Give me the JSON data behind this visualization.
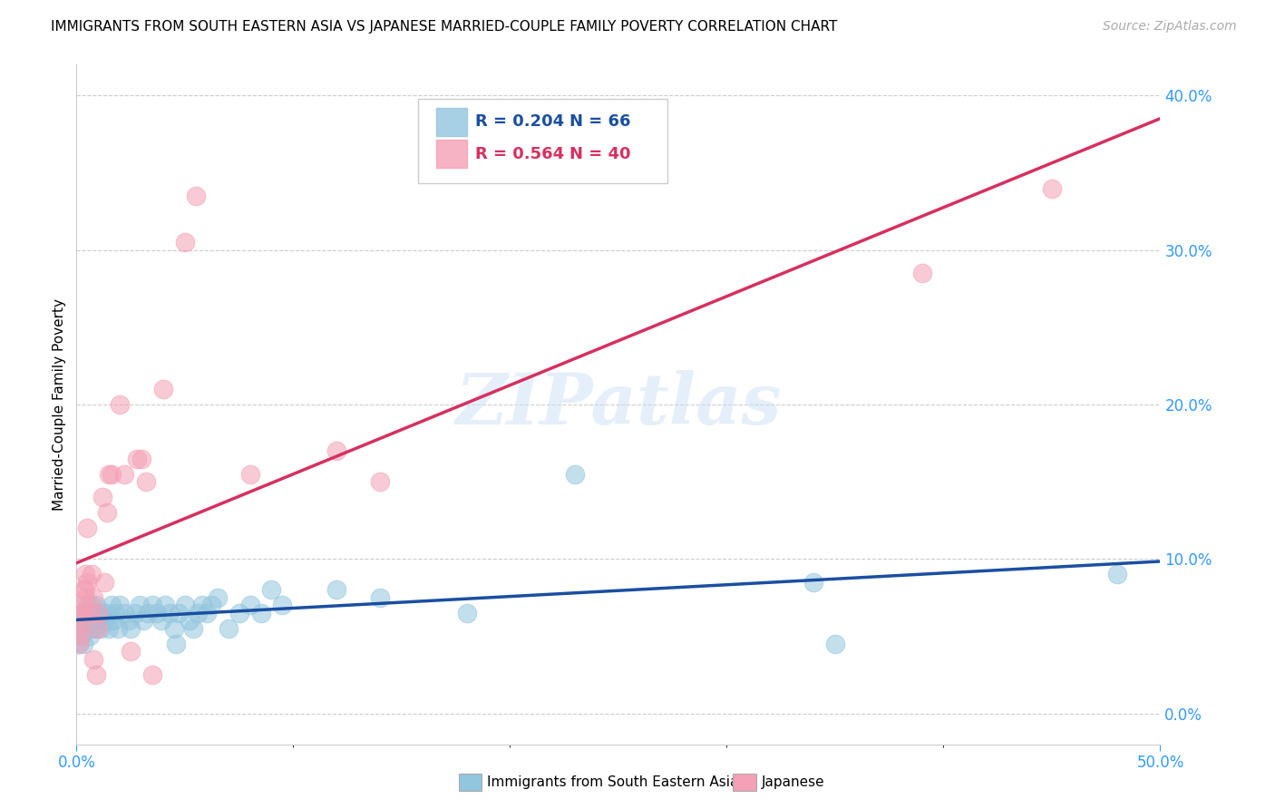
{
  "title": "IMMIGRANTS FROM SOUTH EASTERN ASIA VS JAPANESE MARRIED-COUPLE FAMILY POVERTY CORRELATION CHART",
  "source": "Source: ZipAtlas.com",
  "xlabel_blue": "Immigrants from South Eastern Asia",
  "xlabel_pink": "Japanese",
  "ylabel": "Married-Couple Family Poverty",
  "watermark": "ZIPatlas",
  "legend_blue_r": "0.204",
  "legend_blue_n": "66",
  "legend_pink_r": "0.564",
  "legend_pink_n": "40",
  "blue_color": "#92c5de",
  "pink_color": "#f4a0b5",
  "blue_line_color": "#1a4fa0",
  "pink_line_color": "#d63060",
  "xmin": 0.0,
  "xmax": 0.5,
  "ymin": -0.02,
  "ymax": 0.42,
  "blue_scatter": [
    [
      0.001,
      0.045
    ],
    [
      0.001,
      0.055
    ],
    [
      0.002,
      0.05
    ],
    [
      0.002,
      0.06
    ],
    [
      0.003,
      0.065
    ],
    [
      0.003,
      0.045
    ],
    [
      0.004,
      0.055
    ],
    [
      0.004,
      0.065
    ],
    [
      0.005,
      0.06
    ],
    [
      0.005,
      0.07
    ],
    [
      0.006,
      0.05
    ],
    [
      0.006,
      0.065
    ],
    [
      0.007,
      0.055
    ],
    [
      0.007,
      0.07
    ],
    [
      0.008,
      0.06
    ],
    [
      0.008,
      0.065
    ],
    [
      0.009,
      0.055
    ],
    [
      0.009,
      0.07
    ],
    [
      0.01,
      0.06
    ],
    [
      0.01,
      0.065
    ],
    [
      0.011,
      0.055
    ],
    [
      0.012,
      0.065
    ],
    [
      0.013,
      0.06
    ],
    [
      0.014,
      0.065
    ],
    [
      0.015,
      0.055
    ],
    [
      0.016,
      0.07
    ],
    [
      0.017,
      0.06
    ],
    [
      0.018,
      0.065
    ],
    [
      0.019,
      0.055
    ],
    [
      0.02,
      0.07
    ],
    [
      0.022,
      0.065
    ],
    [
      0.024,
      0.06
    ],
    [
      0.025,
      0.055
    ],
    [
      0.027,
      0.065
    ],
    [
      0.029,
      0.07
    ],
    [
      0.031,
      0.06
    ],
    [
      0.033,
      0.065
    ],
    [
      0.035,
      0.07
    ],
    [
      0.037,
      0.065
    ],
    [
      0.039,
      0.06
    ],
    [
      0.041,
      0.07
    ],
    [
      0.043,
      0.065
    ],
    [
      0.045,
      0.055
    ],
    [
      0.046,
      0.045
    ],
    [
      0.047,
      0.065
    ],
    [
      0.05,
      0.07
    ],
    [
      0.052,
      0.06
    ],
    [
      0.054,
      0.055
    ],
    [
      0.056,
      0.065
    ],
    [
      0.058,
      0.07
    ],
    [
      0.06,
      0.065
    ],
    [
      0.062,
      0.07
    ],
    [
      0.065,
      0.075
    ],
    [
      0.07,
      0.055
    ],
    [
      0.075,
      0.065
    ],
    [
      0.08,
      0.07
    ],
    [
      0.085,
      0.065
    ],
    [
      0.09,
      0.08
    ],
    [
      0.095,
      0.07
    ],
    [
      0.12,
      0.08
    ],
    [
      0.14,
      0.075
    ],
    [
      0.18,
      0.065
    ],
    [
      0.23,
      0.155
    ],
    [
      0.34,
      0.085
    ],
    [
      0.35,
      0.045
    ],
    [
      0.48,
      0.09
    ]
  ],
  "pink_scatter": [
    [
      0.001,
      0.045
    ],
    [
      0.001,
      0.055
    ],
    [
      0.002,
      0.05
    ],
    [
      0.002,
      0.06
    ],
    [
      0.002,
      0.065
    ],
    [
      0.003,
      0.07
    ],
    [
      0.003,
      0.08
    ],
    [
      0.003,
      0.065
    ],
    [
      0.004,
      0.075
    ],
    [
      0.004,
      0.09
    ],
    [
      0.004,
      0.08
    ],
    [
      0.005,
      0.085
    ],
    [
      0.005,
      0.12
    ],
    [
      0.006,
      0.065
    ],
    [
      0.007,
      0.09
    ],
    [
      0.008,
      0.075
    ],
    [
      0.008,
      0.035
    ],
    [
      0.009,
      0.025
    ],
    [
      0.01,
      0.065
    ],
    [
      0.01,
      0.055
    ],
    [
      0.012,
      0.14
    ],
    [
      0.013,
      0.085
    ],
    [
      0.014,
      0.13
    ],
    [
      0.015,
      0.155
    ],
    [
      0.016,
      0.155
    ],
    [
      0.02,
      0.2
    ],
    [
      0.022,
      0.155
    ],
    [
      0.025,
      0.04
    ],
    [
      0.028,
      0.165
    ],
    [
      0.03,
      0.165
    ],
    [
      0.032,
      0.15
    ],
    [
      0.035,
      0.025
    ],
    [
      0.04,
      0.21
    ],
    [
      0.05,
      0.305
    ],
    [
      0.055,
      0.335
    ],
    [
      0.08,
      0.155
    ],
    [
      0.12,
      0.17
    ],
    [
      0.14,
      0.15
    ],
    [
      0.39,
      0.285
    ],
    [
      0.45,
      0.34
    ]
  ],
  "title_fontsize": 11,
  "axis_label_fontsize": 11,
  "tick_fontsize": 12,
  "legend_fontsize": 13,
  "source_fontsize": 10
}
